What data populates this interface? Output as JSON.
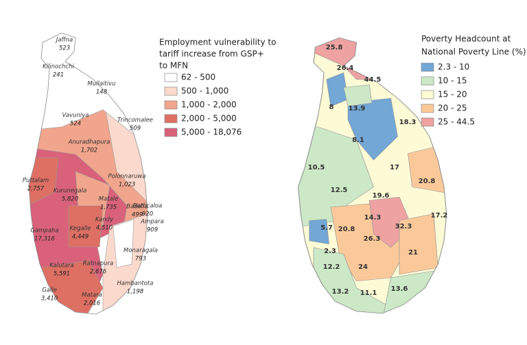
{
  "maps": [
    {
      "legend": {
        "title_lines": [
          "Employment vulnerability to",
          "tariff increase from GSP+",
          "to MFN"
        ],
        "items": [
          {
            "label": "62 - 500",
            "color": "#ffffff"
          },
          {
            "label": "500 - 1,000",
            "color": "#fbd9cc"
          },
          {
            "label": "1,000 - 2,000",
            "color": "#f1a58c"
          },
          {
            "label": "2,000 - 5,000",
            "color": "#de6f63"
          },
          {
            "label": "5,000 - 18,076",
            "color": "#d9627a"
          }
        ]
      },
      "districts": [
        {
          "name": "Jaffna",
          "value": "523"
        },
        {
          "name": "Kilinochchi",
          "value": "241"
        },
        {
          "name": "Mullaitivu",
          "value": "148"
        },
        {
          "name": "Vavuniya",
          "value": "524"
        },
        {
          "name": "Trincomalee",
          "value": "509"
        },
        {
          "name": "Anuradhapura",
          "value": "1,702"
        },
        {
          "name": "Puttalam",
          "value": "2,757"
        },
        {
          "name": "Polonnaruwa",
          "value": "1,023"
        },
        {
          "name": "Batticaloa",
          "value": "920"
        },
        {
          "name": "Kurunegala",
          "value": "5,820"
        },
        {
          "name": "Matale",
          "value": "1,735"
        },
        {
          "name": "Badulla",
          "value": "499"
        },
        {
          "name": "Gampaha",
          "value": "17,316"
        },
        {
          "name": "Kegalle",
          "value": "4,449"
        },
        {
          "name": "Kandy",
          "value": "4,510"
        },
        {
          "name": "Ampara",
          "value": "909"
        },
        {
          "name": "Monaragala",
          "value": "793"
        },
        {
          "name": "Kalutara",
          "value": "5,591"
        },
        {
          "name": "Ratnapura",
          "value": "2,676"
        },
        {
          "name": "Hambantota",
          "value": "1,198"
        },
        {
          "name": "Galle",
          "value": "3,410"
        },
        {
          "name": "Matara",
          "value": "2,016"
        }
      ]
    },
    {
      "legend": {
        "title_lines": [
          "Poverty Headcount at",
          "National Poverty Line (%)"
        ],
        "items": [
          {
            "label": "2.3 - 10",
            "color": "#72a7d6"
          },
          {
            "label": "10 - 15",
            "color": "#cce8c6"
          },
          {
            "label": "15 - 20",
            "color": "#fdfbd6"
          },
          {
            "label": "20 - 25",
            "color": "#fbc999"
          },
          {
            "label": "25 - 44.5",
            "color": "#efa2a2"
          }
        ]
      },
      "district_values": [
        "25.8",
        "26.4",
        "44.5",
        "8",
        "13.9",
        "18.3",
        "8.1",
        "10.5",
        "17",
        "20.8",
        "12.5",
        "19.6",
        "14.3",
        "32.3",
        "17.2",
        "5.7",
        "20.8",
        "26.3",
        "21",
        "2.3",
        "12.2",
        "24",
        "13.2",
        "11.1",
        "13.6"
      ]
    }
  ]
}
